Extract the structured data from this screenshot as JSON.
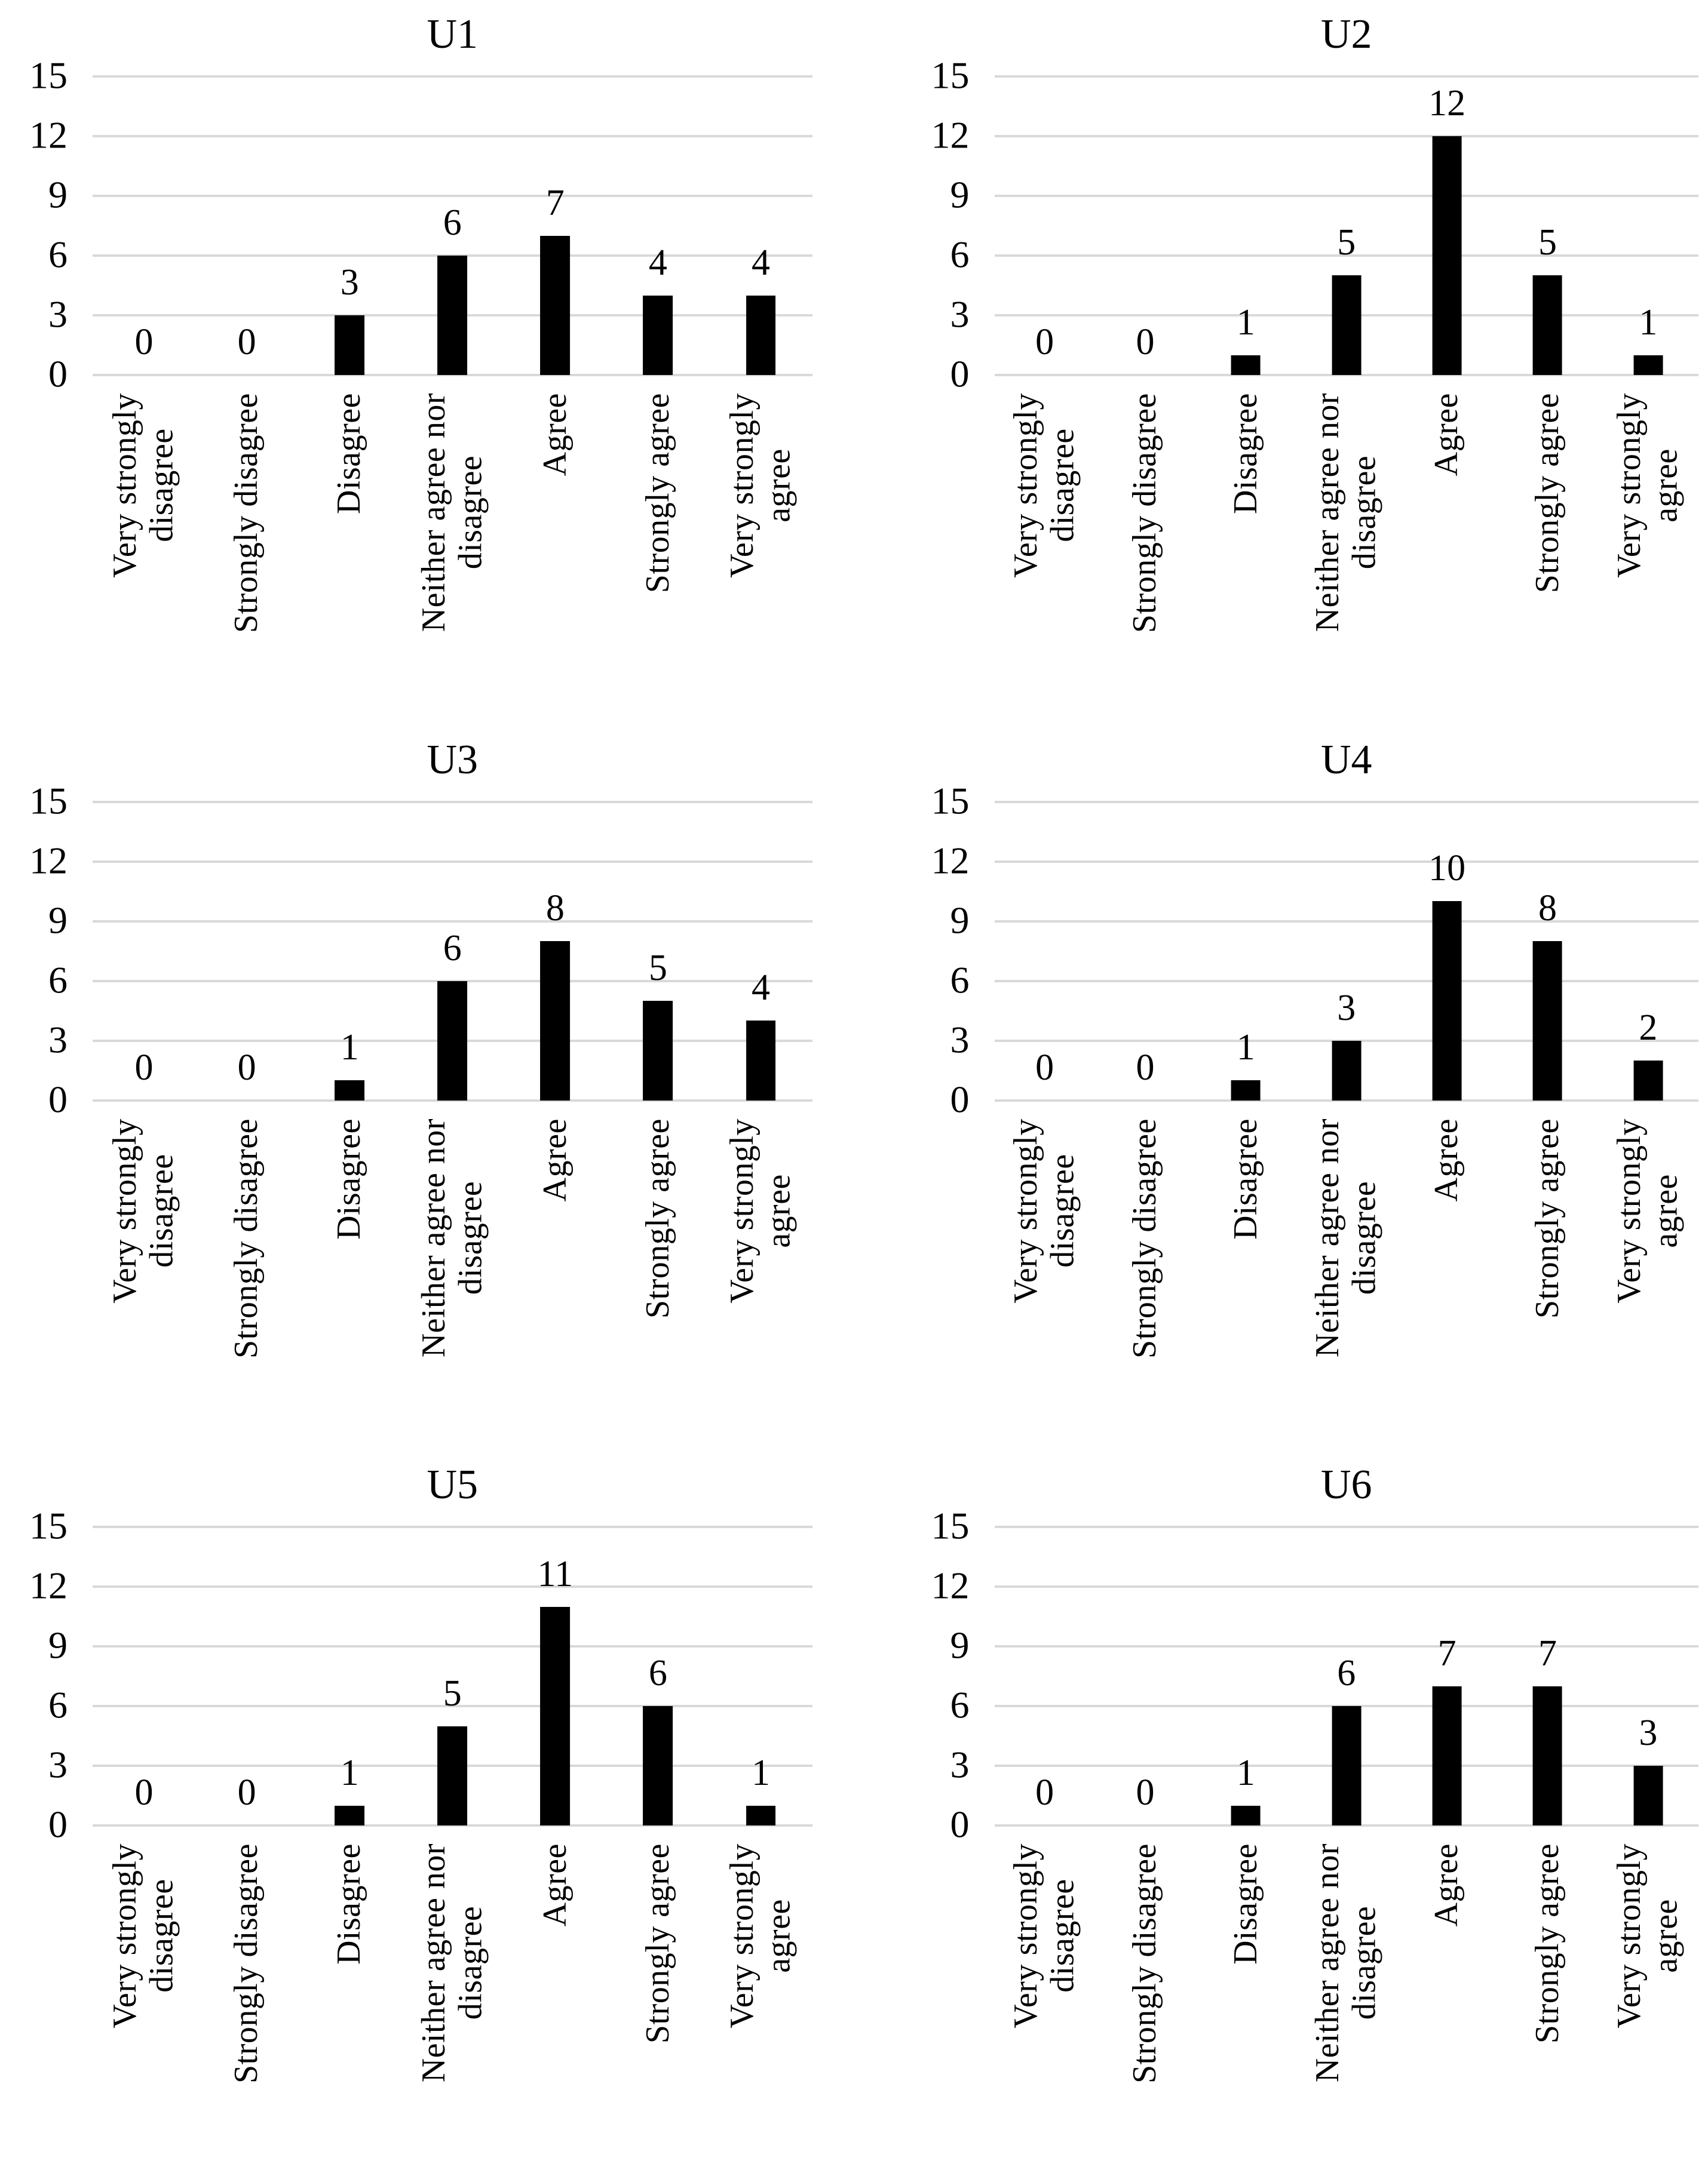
{
  "figure": {
    "description_titles": [
      "U1",
      "U2",
      "U3",
      "U4",
      "U5",
      "U6"
    ]
  },
  "colors": {
    "background": "#ffffff",
    "bar": "#000000",
    "gridline": "#d9d9d9",
    "text": "#000000"
  },
  "axis": {
    "y_ticks_display": [
      15,
      12,
      9,
      6,
      3,
      0
    ],
    "y_max": 15,
    "category_lines": [
      "Very strongly\ndisagree",
      "Strongly disagree",
      "Disagree",
      "Neither agree nor\ndisagree",
      "Agree",
      "Strongly agree",
      "Very strongly\nagree"
    ]
  },
  "chart_data": [
    {
      "type": "bar",
      "title": "U1",
      "categories": [
        "Very strongly disagree",
        "Strongly disagree",
        "Disagree",
        "Neither agree nor disagree",
        "Agree",
        "Strongly agree",
        "Very strongly agree"
      ],
      "values": [
        0,
        0,
        3,
        6,
        7,
        4,
        4
      ],
      "ylim": [
        0,
        15
      ],
      "yticks": [
        0,
        3,
        6,
        9,
        12,
        15
      ],
      "grid": true,
      "bar_color": "#000000",
      "data_labels": true,
      "legend": "none"
    },
    {
      "type": "bar",
      "title": "U2",
      "categories": [
        "Very strongly disagree",
        "Strongly disagree",
        "Disagree",
        "Neither agree nor disagree",
        "Agree",
        "Strongly agree",
        "Very strongly agree"
      ],
      "values": [
        0,
        0,
        1,
        5,
        12,
        5,
        1
      ],
      "ylim": [
        0,
        15
      ],
      "yticks": [
        0,
        3,
        6,
        9,
        12,
        15
      ],
      "grid": true,
      "bar_color": "#000000",
      "data_labels": true,
      "legend": "none"
    },
    {
      "type": "bar",
      "title": "U3",
      "categories": [
        "Very strongly disagree",
        "Strongly disagree",
        "Disagree",
        "Neither agree nor disagree",
        "Agree",
        "Strongly agree",
        "Very strongly agree"
      ],
      "values": [
        0,
        0,
        1,
        6,
        8,
        5,
        4
      ],
      "ylim": [
        0,
        15
      ],
      "yticks": [
        0,
        3,
        6,
        9,
        12,
        15
      ],
      "grid": true,
      "bar_color": "#000000",
      "data_labels": true,
      "legend": "none"
    },
    {
      "type": "bar",
      "title": "U4",
      "categories": [
        "Very strongly disagree",
        "Strongly disagree",
        "Disagree",
        "Neither agree nor disagree",
        "Agree",
        "Strongly agree",
        "Very strongly agree"
      ],
      "values": [
        0,
        0,
        1,
        3,
        10,
        8,
        2
      ],
      "ylim": [
        0,
        15
      ],
      "yticks": [
        0,
        3,
        6,
        9,
        12,
        15
      ],
      "grid": true,
      "bar_color": "#000000",
      "data_labels": true,
      "legend": "none"
    },
    {
      "type": "bar",
      "title": "U5",
      "categories": [
        "Very strongly disagree",
        "Strongly disagree",
        "Disagree",
        "Neither agree nor disagree",
        "Agree",
        "Strongly agree",
        "Very strongly agree"
      ],
      "values": [
        0,
        0,
        1,
        5,
        11,
        6,
        1
      ],
      "ylim": [
        0,
        15
      ],
      "yticks": [
        0,
        3,
        6,
        9,
        12,
        15
      ],
      "grid": true,
      "bar_color": "#000000",
      "data_labels": true,
      "legend": "none"
    },
    {
      "type": "bar",
      "title": "U6",
      "categories": [
        "Very strongly disagree",
        "Strongly disagree",
        "Disagree",
        "Neither agree nor disagree",
        "Agree",
        "Strongly agree",
        "Very strongly agree"
      ],
      "values": [
        0,
        0,
        1,
        6,
        7,
        7,
        3
      ],
      "ylim": [
        0,
        15
      ],
      "yticks": [
        0,
        3,
        6,
        9,
        12,
        15
      ],
      "grid": true,
      "bar_color": "#000000",
      "data_labels": true,
      "legend": "none"
    }
  ]
}
